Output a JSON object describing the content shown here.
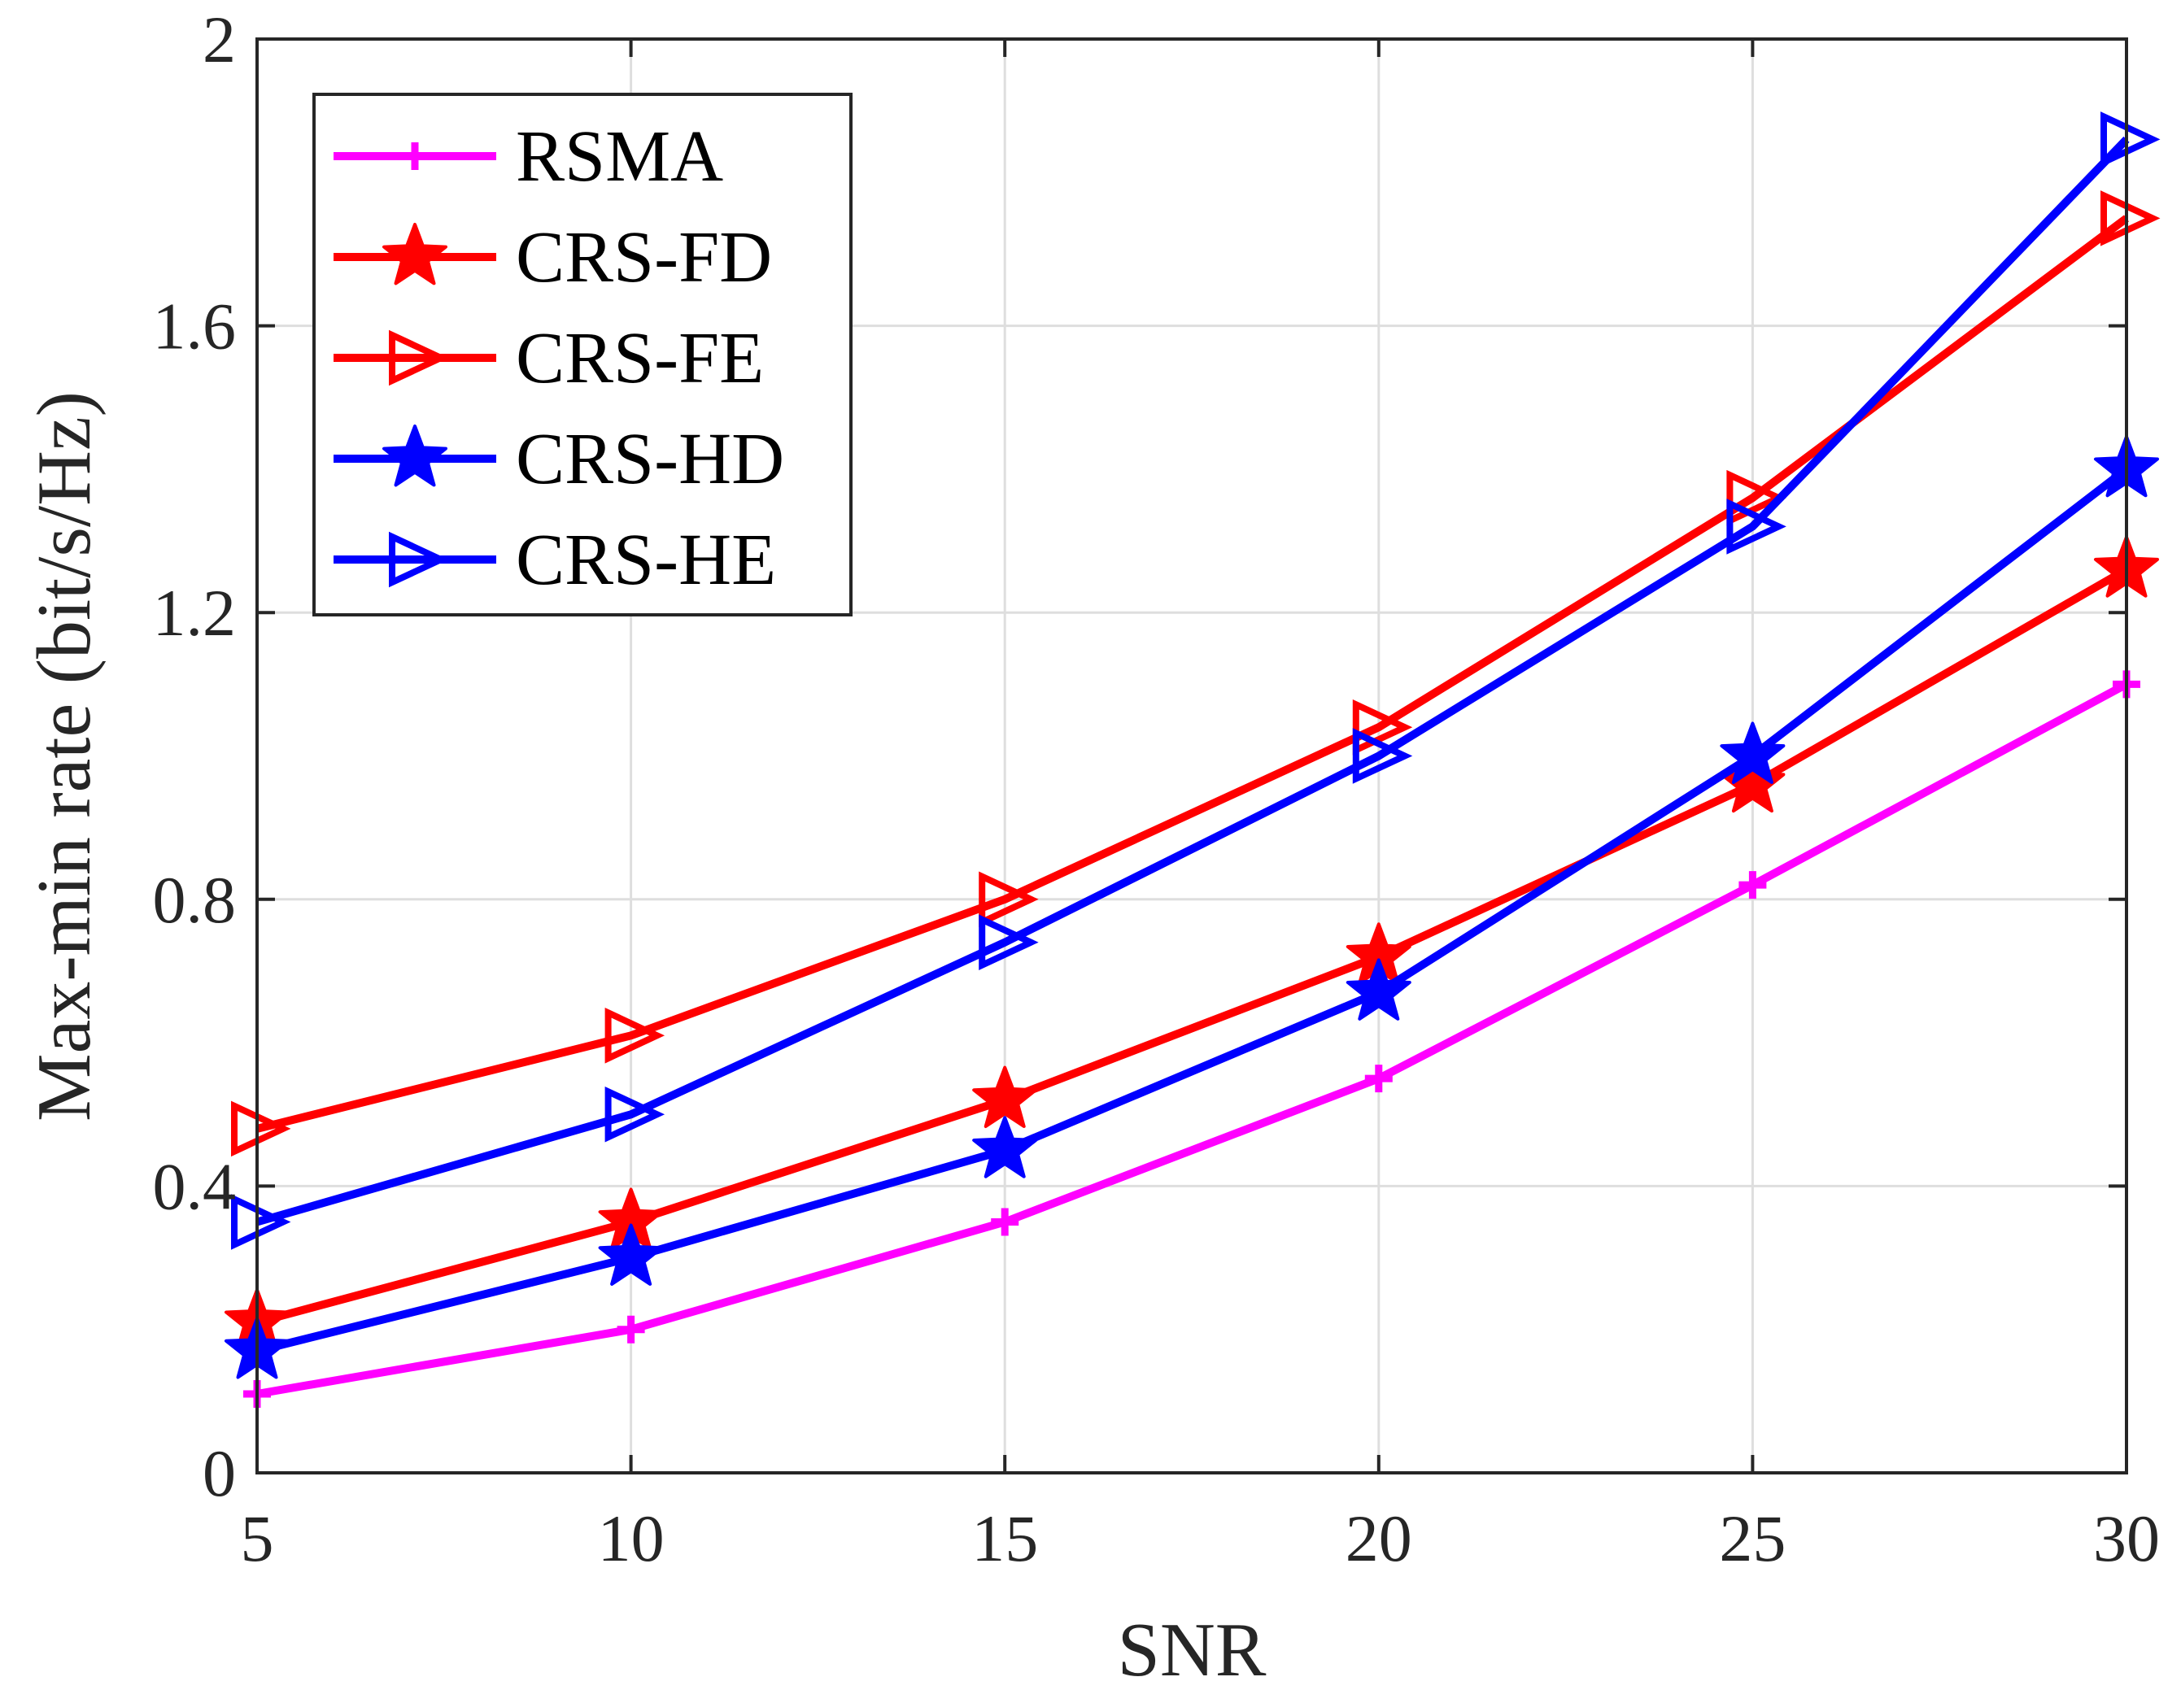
{
  "chart_data": {
    "type": "line",
    "title": "",
    "xlabel": "SNR",
    "ylabel": "Max-min rate (bit/s/Hz)",
    "x": [
      5,
      10,
      15,
      20,
      25,
      30
    ],
    "xlim": [
      5,
      30
    ],
    "ylim": [
      0,
      2
    ],
    "xticks": [
      5,
      10,
      15,
      20,
      25,
      30
    ],
    "yticks": [
      0,
      0.4,
      0.8,
      1.2,
      1.6,
      2
    ],
    "xtick_labels": [
      "5",
      "10",
      "15",
      "20",
      "25",
      "30"
    ],
    "ytick_labels": [
      "0",
      "0.4",
      "0.8",
      "1.2",
      "1.6",
      "2"
    ],
    "grid": true,
    "legend_position": "top-left",
    "series": [
      {
        "name": "RSMA",
        "color": "#ff00ff",
        "marker": "plus",
        "values": [
          0.11,
          0.2,
          0.35,
          0.55,
          0.82,
          1.1
        ]
      },
      {
        "name": "CRS-FD",
        "color": "#ff0000",
        "marker": "star",
        "values": [
          0.21,
          0.35,
          0.52,
          0.72,
          0.96,
          1.26
        ]
      },
      {
        "name": "CRS-FE",
        "color": "#ff0000",
        "marker": "triangle-right",
        "values": [
          0.48,
          0.61,
          0.8,
          1.04,
          1.36,
          1.75
        ]
      },
      {
        "name": "CRS-HD",
        "color": "#0000ff",
        "marker": "star",
        "values": [
          0.17,
          0.3,
          0.45,
          0.67,
          1.0,
          1.4
        ]
      },
      {
        "name": "CRS-HE",
        "color": "#0000ff",
        "marker": "triangle-right",
        "values": [
          0.35,
          0.5,
          0.74,
          1.0,
          1.32,
          1.86
        ]
      }
    ]
  }
}
